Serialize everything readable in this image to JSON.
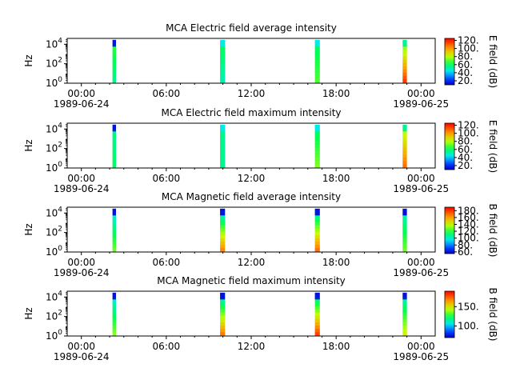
{
  "chart_data": [
    {
      "type": "heatmap",
      "title": "MCA  Electric field average intensity",
      "ylabel": "Hz",
      "colorbar_label": "E field (dB)",
      "colorbar_ticks": [
        "20.",
        "40.",
        "60.",
        "80.",
        "100.",
        "120."
      ],
      "colorbar_range": [
        10,
        125
      ],
      "x_ticks": [
        "00:00",
        "06:00",
        "12:00",
        "18:00",
        "00:00"
      ],
      "x_dates": [
        "1989-06-24",
        "",
        "",
        "",
        "1989-06-25"
      ],
      "x_range_hours": [
        -1,
        25
      ],
      "y_ticks": [
        "10^0",
        "10^2",
        "10^4"
      ],
      "y_range_log10": [
        0,
        4.6
      ],
      "bursts": [
        {
          "start_hour": 2.2,
          "end_hour": 2.45,
          "intensity_low": 55,
          "intensity_high": 65,
          "top_intensity": 15
        },
        {
          "start_hour": 9.8,
          "end_hour": 10.15,
          "intensity_low": 50,
          "intensity_high": 60,
          "top_intensity": 45
        },
        {
          "start_hour": 16.5,
          "end_hour": 16.85,
          "intensity_low": 70,
          "intensity_high": 60,
          "top_intensity": 45
        },
        {
          "start_hour": 22.7,
          "end_hour": 23.0,
          "intensity_low": 120,
          "intensity_high": 75,
          "top_intensity": 55
        }
      ]
    },
    {
      "type": "heatmap",
      "title": "MCA  Electric field maximum intensity",
      "ylabel": "Hz",
      "colorbar_label": "E field (dB)",
      "colorbar_ticks": [
        "20.",
        "40.",
        "60.",
        "80.",
        "100.",
        "120."
      ],
      "colorbar_range": [
        10,
        125
      ],
      "x_ticks": [
        "00:00",
        "06:00",
        "12:00",
        "18:00",
        "00:00"
      ],
      "x_dates": [
        "1989-06-24",
        "",
        "",
        "",
        "1989-06-25"
      ],
      "x_range_hours": [
        -1,
        25
      ],
      "y_ticks": [
        "10^0",
        "10^2",
        "10^4"
      ],
      "y_range_log10": [
        0,
        4.6
      ],
      "bursts": [
        {
          "start_hour": 2.2,
          "end_hour": 2.45,
          "intensity_low": 60,
          "intensity_high": 55,
          "top_intensity": 15
        },
        {
          "start_hour": 9.8,
          "end_hour": 10.15,
          "intensity_low": 55,
          "intensity_high": 55,
          "top_intensity": 45
        },
        {
          "start_hour": 16.5,
          "end_hour": 16.85,
          "intensity_low": 75,
          "intensity_high": 60,
          "top_intensity": 45
        },
        {
          "start_hour": 22.7,
          "end_hour": 23.0,
          "intensity_low": 110,
          "intensity_high": 80,
          "top_intensity": 55
        }
      ]
    },
    {
      "type": "heatmap",
      "title": "MCA  Magnetic field average intensity",
      "ylabel": "Hz",
      "colorbar_label": "B field (dB)",
      "colorbar_ticks": [
        "60.",
        "80.",
        "100.",
        "120.",
        "140.",
        "160.",
        "180."
      ],
      "colorbar_range": [
        55,
        190
      ],
      "x_ticks": [
        "00:00",
        "06:00",
        "12:00",
        "18:00",
        "00:00"
      ],
      "x_dates": [
        "1989-06-24",
        "",
        "",
        "",
        "1989-06-25"
      ],
      "x_range_hours": [
        -1,
        25
      ],
      "y_ticks": [
        "10^0",
        "10^2",
        "10^4"
      ],
      "y_range_log10": [
        0,
        4.6
      ],
      "bursts": [
        {
          "start_hour": 2.2,
          "end_hour": 2.45,
          "intensity_low": 130,
          "intensity_high": 100,
          "top_intensity": 60
        },
        {
          "start_hour": 9.8,
          "end_hour": 10.15,
          "intensity_low": 170,
          "intensity_high": 105,
          "top_intensity": 60
        },
        {
          "start_hour": 16.5,
          "end_hour": 16.85,
          "intensity_low": 175,
          "intensity_high": 110,
          "top_intensity": 60
        },
        {
          "start_hour": 22.7,
          "end_hour": 23.0,
          "intensity_low": 130,
          "intensity_high": 105,
          "top_intensity": 60
        }
      ]
    },
    {
      "type": "heatmap",
      "title": "MCA  Magnetic field maximum intensity",
      "ylabel": "Hz",
      "colorbar_label": "B field (dB)",
      "colorbar_ticks": [
        "100.",
        "150."
      ],
      "colorbar_range": [
        70,
        190
      ],
      "x_ticks": [
        "00:00",
        "06:00",
        "12:00",
        "18:00",
        "00:00"
      ],
      "x_dates": [
        "1989-06-24",
        "",
        "",
        "",
        "1989-06-25"
      ],
      "x_range_hours": [
        -1,
        25
      ],
      "y_ticks": [
        "10^0",
        "10^2",
        "10^4"
      ],
      "y_range_log10": [
        0,
        4.6
      ],
      "bursts": [
        {
          "start_hour": 2.2,
          "end_hour": 2.45,
          "intensity_low": 140,
          "intensity_high": 110,
          "top_intensity": 75
        },
        {
          "start_hour": 9.8,
          "end_hour": 10.15,
          "intensity_low": 175,
          "intensity_high": 115,
          "top_intensity": 75
        },
        {
          "start_hour": 16.5,
          "end_hour": 16.85,
          "intensity_low": 185,
          "intensity_high": 120,
          "top_intensity": 75
        },
        {
          "start_hour": 22.7,
          "end_hour": 23.0,
          "intensity_low": 150,
          "intensity_high": 115,
          "top_intensity": 75
        }
      ]
    }
  ]
}
